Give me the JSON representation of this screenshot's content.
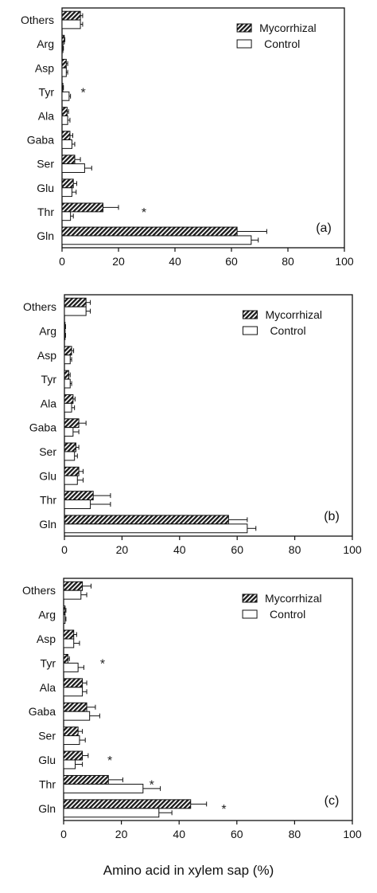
{
  "figure": {
    "xlabel": "Amino acid in xylem sap (%)"
  },
  "colors": {
    "axis": "#111111",
    "control_fill": "#ffffff",
    "mycorrhizal_hatch": "#1a1a1a"
  },
  "chart_data": [
    {
      "type": "bar",
      "orientation": "horizontal",
      "panel_label": "(a)",
      "categories": [
        "Others",
        "Arg",
        "Asp",
        "Tyr",
        "Ala",
        "Gaba",
        "Ser",
        "Glu",
        "Thr",
        "Gln"
      ],
      "xlim": [
        0,
        100
      ],
      "xticks": [
        0,
        20,
        40,
        60,
        80,
        100
      ],
      "legend_position": "top-right",
      "series": [
        {
          "name": "Mycorrhizal",
          "fill": "hatched",
          "values": [
            6.5,
            0.8,
            1.5,
            0.3,
            1.8,
            2.8,
            4.5,
            4.0,
            14.5,
            62.0
          ],
          "errors": [
            0.8,
            0.2,
            0.5,
            0.2,
            0.5,
            1.0,
            2.0,
            1.2,
            5.5,
            10.5
          ]
        },
        {
          "name": "Control",
          "fill": "open",
          "values": [
            6.5,
            0.3,
            1.5,
            2.5,
            2.0,
            3.5,
            8.0,
            3.5,
            3.0,
            67.0
          ],
          "errors": [
            0.8,
            0.2,
            0.5,
            0.5,
            0.8,
            1.0,
            2.5,
            1.5,
            1.0,
            2.5
          ]
        }
      ],
      "significance": [
        {
          "category": "Tyr",
          "x": 7.5,
          "mark": "*"
        },
        {
          "category": "Thr",
          "x": 29,
          "mark": "*"
        }
      ]
    },
    {
      "type": "bar",
      "orientation": "horizontal",
      "panel_label": "(b)",
      "categories": [
        "Others",
        "Arg",
        "Asp",
        "Tyr",
        "Ala",
        "Gaba",
        "Ser",
        "Glu",
        "Thr",
        "Gln"
      ],
      "xlim": [
        0,
        100
      ],
      "xticks": [
        0,
        20,
        40,
        60,
        80,
        100
      ],
      "legend_position": "top-right",
      "series": [
        {
          "name": "Mycorrhizal",
          "fill": "hatched",
          "values": [
            7.5,
            0.2,
            2.5,
            1.5,
            3.0,
            5.0,
            4.0,
            5.0,
            10.0,
            57.0
          ],
          "errors": [
            1.5,
            0.2,
            0.7,
            0.5,
            0.7,
            2.5,
            1.0,
            1.5,
            6.0,
            6.5
          ]
        },
        {
          "name": "Control",
          "fill": "open",
          "values": [
            7.5,
            0.2,
            2.0,
            2.0,
            2.5,
            3.0,
            3.5,
            4.5,
            9.0,
            63.5
          ],
          "errors": [
            1.5,
            0.2,
            0.5,
            0.5,
            1.0,
            2.0,
            1.0,
            2.0,
            7.0,
            3.0
          ]
        }
      ],
      "significance": []
    },
    {
      "type": "bar",
      "orientation": "horizontal",
      "panel_label": "(c)",
      "categories": [
        "Others",
        "Arg",
        "Asp",
        "Tyr",
        "Ala",
        "Gaba",
        "Ser",
        "Glu",
        "Thr",
        "Gln"
      ],
      "xlim": [
        0,
        100
      ],
      "xticks": [
        0,
        20,
        40,
        60,
        80,
        100
      ],
      "legend_position": "top-right",
      "series": [
        {
          "name": "Mycorrhizal",
          "fill": "hatched",
          "values": [
            6.5,
            0.5,
            3.5,
            1.5,
            6.5,
            8.0,
            5.0,
            6.5,
            15.5,
            44.0
          ],
          "errors": [
            3.0,
            0.3,
            1.0,
            0.5,
            1.5,
            3.0,
            1.5,
            2.0,
            5.0,
            5.5
          ]
        },
        {
          "name": "Control",
          "fill": "open",
          "values": [
            6.0,
            0.5,
            3.5,
            5.0,
            6.5,
            9.0,
            5.5,
            4.0,
            27.5,
            33.0
          ],
          "errors": [
            2.0,
            0.3,
            2.0,
            2.0,
            1.5,
            3.5,
            2.0,
            2.5,
            6.0,
            4.5
          ]
        }
      ],
      "significance": [
        {
          "category": "Tyr",
          "x": 13.5,
          "mark": "*"
        },
        {
          "category": "Glu",
          "x": 16,
          "mark": "*"
        },
        {
          "category": "Thr",
          "x": 30.5,
          "mark": "*"
        },
        {
          "category": "Gln",
          "x": 55.5,
          "mark": "*"
        }
      ]
    }
  ]
}
